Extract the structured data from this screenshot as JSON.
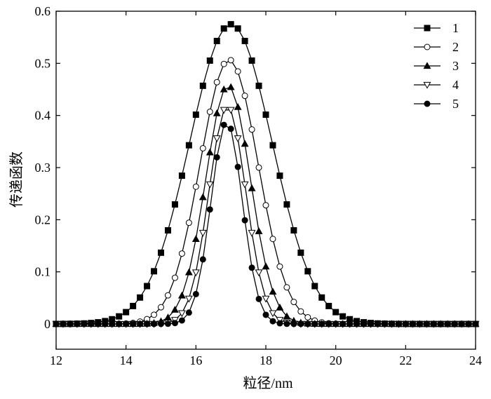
{
  "chart_data": {
    "type": "line",
    "title": "",
    "xlabel": "粒径/nm",
    "ylabel": "传递函数",
    "xlim": [
      12,
      24
    ],
    "ylim": [
      0,
      0.6
    ],
    "xticks": [
      12,
      14,
      16,
      18,
      20,
      22,
      24
    ],
    "yticks": [
      0,
      0.1,
      0.2,
      0.3,
      0.4,
      0.5,
      0.6
    ],
    "x_tick_labels": [
      "12",
      "14",
      "16",
      "18",
      "20",
      "22",
      "24"
    ],
    "y_tick_labels": [
      "0",
      "0.1",
      "0.2",
      "0.3",
      "0.4",
      "0.5",
      "0.6"
    ],
    "grid": false,
    "legend_position": "top-right",
    "series": [
      {
        "name": "1",
        "marker": "filled-square",
        "peak": 0.575,
        "center": 17.0,
        "sigma": 1.18
      },
      {
        "name": "2",
        "marker": "open-circle",
        "peak": 0.507,
        "center": 16.95,
        "sigma": 0.83
      },
      {
        "name": "3",
        "marker": "filled-triangle-up",
        "peak": 0.458,
        "center": 16.92,
        "sigma": 0.64
      },
      {
        "name": "4",
        "marker": "open-triangle-down",
        "peak": 0.418,
        "center": 16.9,
        "sigma": 0.53
      },
      {
        "name": "5",
        "marker": "filled-circle",
        "peak": 0.388,
        "center": 16.88,
        "sigma": 0.45
      }
    ]
  }
}
